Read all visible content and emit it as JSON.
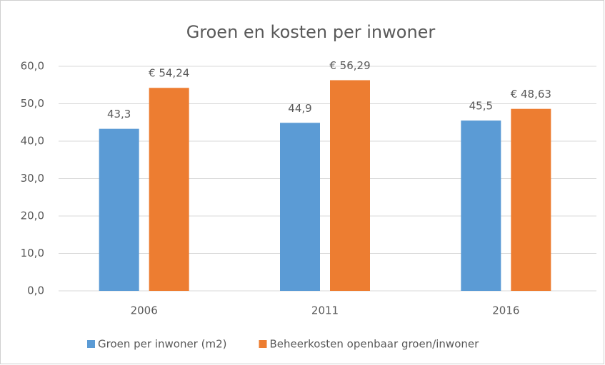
{
  "chart_data": {
    "type": "bar",
    "title": "Groen en kosten per inwoner",
    "categories": [
      "2006",
      "2011",
      "2016"
    ],
    "series": [
      {
        "name": "Groen per inwoner (m2)",
        "color": "#5b9bd5",
        "values": [
          43.3,
          44.9,
          45.5
        ],
        "value_labels": [
          "43,3",
          "44,9",
          "45,5"
        ]
      },
      {
        "name": "Beheerkosten openbaar groen/inwoner",
        "color": "#ed7d31",
        "values": [
          54.24,
          56.29,
          48.63
        ],
        "value_labels": [
          "€ 54,24",
          "€ 56,29",
          "€ 48,63"
        ]
      }
    ],
    "ylim": [
      0,
      60
    ],
    "yticks": [
      {
        "value": 0,
        "label": "0,0"
      },
      {
        "value": 10,
        "label": "10,0"
      },
      {
        "value": 20,
        "label": "20,0"
      },
      {
        "value": 30,
        "label": "30,0"
      },
      {
        "value": 40,
        "label": "40,0"
      },
      {
        "value": 50,
        "label": "50,0"
      },
      {
        "value": 60,
        "label": "60,0"
      }
    ],
    "grid": true,
    "legend": "bottom"
  }
}
